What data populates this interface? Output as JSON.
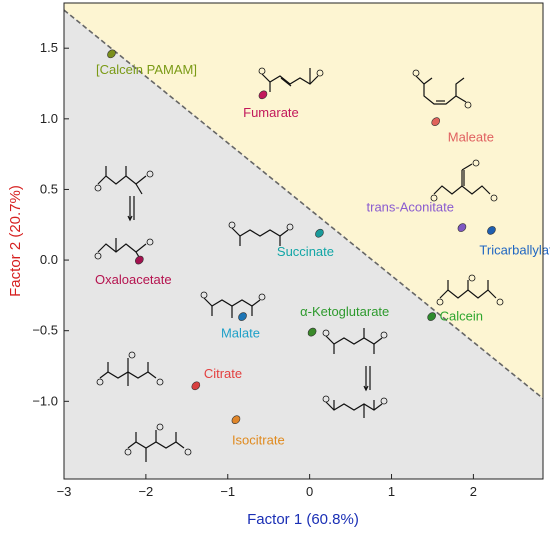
{
  "chart_data": {
    "type": "scatter",
    "xlabel": "Factor 1 (60.8%)",
    "ylabel": "Factor 2 (20.7%)",
    "xlim": [
      -3.0,
      2.85
    ],
    "ylim": [
      -1.55,
      1.82
    ],
    "x_ticks": [
      -3,
      -2,
      -1,
      0,
      1,
      2
    ],
    "y_ticks": [
      -1.0,
      -0.5,
      0.0,
      0.5,
      1.0,
      1.5
    ],
    "x_tick_labels": [
      "−3",
      "−2",
      "−1",
      "0",
      "1",
      "2"
    ],
    "y_tick_labels": [
      "−1.0",
      "−0.5",
      "0.0",
      "0.5",
      "1.0",
      "1.5"
    ],
    "grid": false,
    "regions": [
      {
        "color": "#fdf5d2",
        "side": "upper-right"
      },
      {
        "color": "#e6e6e6",
        "side": "lower-left"
      }
    ],
    "boundary_line": {
      "x1": -3.0,
      "y1": 1.77,
      "x2": 2.85,
      "y2": -0.98,
      "style": "dashed"
    },
    "points": [
      {
        "name": "[Calcein   PAMAM]",
        "x": -2.42,
        "y": 1.46,
        "color": "#7a8f1c",
        "label_color": "#7a9a15"
      },
      {
        "name": "Fumarate",
        "x": -0.57,
        "y": 1.17,
        "color": "#c2185b",
        "label_color": "#c2185b"
      },
      {
        "name": "Maleate",
        "x": 1.54,
        "y": 0.98,
        "color": "#e0625a",
        "label_color": "#e06060"
      },
      {
        "name": "trans-Aconitate",
        "x": 1.86,
        "y": 0.23,
        "color": "#7e57c2",
        "label_color": "#8a5bd0"
      },
      {
        "name": "Tricarballylate",
        "x": 2.22,
        "y": 0.21,
        "color": "#1f5fb0",
        "label_color": "#1f66c2"
      },
      {
        "name": "Succinate",
        "x": 0.12,
        "y": 0.19,
        "color": "#1a9a9a",
        "label_color": "#12a6a6"
      },
      {
        "name": "Oxaloacetate",
        "x": -2.08,
        "y": 0.0,
        "color": "#a3124f",
        "label_color": "#b5134f"
      },
      {
        "name": "Calcein",
        "x": 1.49,
        "y": -0.4,
        "color": "#2e8b2e",
        "label_color": "#2ea62e"
      },
      {
        "name": "Malate",
        "x": -0.82,
        "y": -0.4,
        "color": "#1d75b5",
        "label_color": "#1ea0c8"
      },
      {
        "name": "α-Ketoglutarate",
        "x": 0.03,
        "y": -0.51,
        "color": "#3a8a2a",
        "label_color": "#2e9a2e"
      },
      {
        "name": "Citrate",
        "x": -1.39,
        "y": -0.89,
        "color": "#d84040",
        "label_color": "#e34040"
      },
      {
        "name": "Isocitrate",
        "x": -0.9,
        "y": -1.13,
        "color": "#e0862a",
        "label_color": "#e08a1e"
      }
    ]
  }
}
